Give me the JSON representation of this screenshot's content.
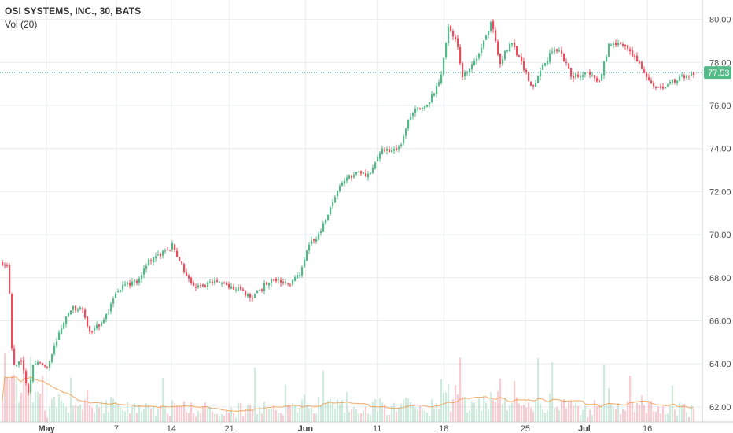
{
  "legend": {
    "title": "OSI SYSTEMS, INC., 30, BATS",
    "volume": "Vol (20)"
  },
  "chart_data": {
    "type": "candlestick",
    "title": "OSI SYSTEMS, INC., 30, BATS",
    "indicator": "Vol (20)",
    "ylim": [
      61.3,
      80.9
    ],
    "y_ticks": [
      "62.00",
      "64.00",
      "66.00",
      "68.00",
      "70.00",
      "72.00",
      "74.00",
      "76.00",
      "78.00",
      "80.00"
    ],
    "x_ticks": [
      {
        "label": "May",
        "pos": 0.0635,
        "bold": true
      },
      {
        "label": "7",
        "pos": 0.1587,
        "bold": false
      },
      {
        "label": "14",
        "pos": 0.2338,
        "bold": false
      },
      {
        "label": "21",
        "pos": 0.3129,
        "bold": false
      },
      {
        "label": "Jun",
        "pos": 0.4167,
        "bold": true
      },
      {
        "label": "11",
        "pos": 0.5147,
        "bold": false
      },
      {
        "label": "18",
        "pos": 0.6054,
        "bold": false
      },
      {
        "label": "25",
        "pos": 0.7166,
        "bold": false
      },
      {
        "label": "Jul",
        "pos": 0.7971,
        "bold": true
      },
      {
        "label": "16",
        "pos": 0.8832,
        "bold": false
      }
    ],
    "last_price": "77.53",
    "last_value": 77.53,
    "grid": true,
    "colors": {
      "up": "#53b987",
      "down": "#eb4d5c",
      "price_line": "#26a69a",
      "ma": "#f29a49"
    },
    "anchors": [
      {
        "x": 0.0,
        "y": 68.7
      },
      {
        "x": 0.01,
        "y": 68.6
      },
      {
        "x": 0.016,
        "y": 64.0
      },
      {
        "x": 0.03,
        "y": 64.0
      },
      {
        "x": 0.037,
        "y": 62.6
      },
      {
        "x": 0.045,
        "y": 64.0
      },
      {
        "x": 0.065,
        "y": 63.9
      },
      {
        "x": 0.08,
        "y": 65.4
      },
      {
        "x": 0.095,
        "y": 66.6
      },
      {
        "x": 0.11,
        "y": 66.6
      },
      {
        "x": 0.12,
        "y": 65.5
      },
      {
        "x": 0.14,
        "y": 65.9
      },
      {
        "x": 0.16,
        "y": 67.5
      },
      {
        "x": 0.19,
        "y": 67.9
      },
      {
        "x": 0.2,
        "y": 68.7
      },
      {
        "x": 0.235,
        "y": 69.5
      },
      {
        "x": 0.26,
        "y": 67.6
      },
      {
        "x": 0.3,
        "y": 67.8
      },
      {
        "x": 0.345,
        "y": 67.1
      },
      {
        "x": 0.37,
        "y": 68.0
      },
      {
        "x": 0.395,
        "y": 67.7
      },
      {
        "x": 0.41,
        "y": 68.3
      },
      {
        "x": 0.42,
        "y": 69.6
      },
      {
        "x": 0.435,
        "y": 70.0
      },
      {
        "x": 0.46,
        "y": 72.2
      },
      {
        "x": 0.47,
        "y": 72.6
      },
      {
        "x": 0.49,
        "y": 72.9
      },
      {
        "x": 0.5,
        "y": 72.7
      },
      {
        "x": 0.52,
        "y": 73.9
      },
      {
        "x": 0.545,
        "y": 74.0
      },
      {
        "x": 0.56,
        "y": 75.7
      },
      {
        "x": 0.58,
        "y": 75.9
      },
      {
        "x": 0.6,
        "y": 77.3
      },
      {
        "x": 0.61,
        "y": 79.6
      },
      {
        "x": 0.62,
        "y": 79.2
      },
      {
        "x": 0.63,
        "y": 77.4
      },
      {
        "x": 0.65,
        "y": 78.2
      },
      {
        "x": 0.67,
        "y": 79.9
      },
      {
        "x": 0.68,
        "y": 77.9
      },
      {
        "x": 0.695,
        "y": 78.9
      },
      {
        "x": 0.71,
        "y": 78.1
      },
      {
        "x": 0.725,
        "y": 76.7
      },
      {
        "x": 0.74,
        "y": 78.0
      },
      {
        "x": 0.76,
        "y": 78.7
      },
      {
        "x": 0.78,
        "y": 77.3
      },
      {
        "x": 0.8,
        "y": 77.6
      },
      {
        "x": 0.815,
        "y": 77.0
      },
      {
        "x": 0.83,
        "y": 78.8
      },
      {
        "x": 0.85,
        "y": 78.9
      },
      {
        "x": 0.87,
        "y": 78.0
      },
      {
        "x": 0.895,
        "y": 76.7
      },
      {
        "x": 0.915,
        "y": 77.1
      },
      {
        "x": 0.94,
        "y": 77.5
      }
    ]
  }
}
